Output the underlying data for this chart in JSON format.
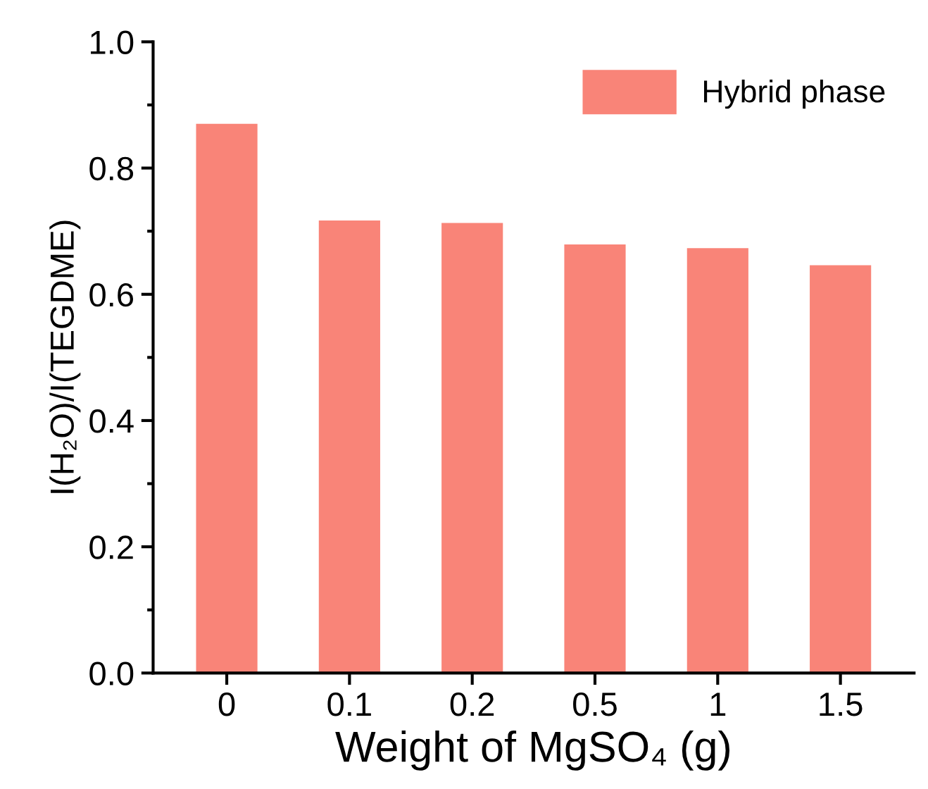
{
  "chart_data": {
    "type": "bar",
    "xlabel": "Weight of MgSO₄ (g)",
    "ylabel": "I(H₂O)/I(TEGDME)",
    "categories": [
      "0",
      "0.1",
      "0.2",
      "0.5",
      "1",
      "1.5"
    ],
    "series": [
      {
        "name": "Hybrid phase",
        "color": "#f98478",
        "values": [
          0.87,
          0.717,
          0.713,
          0.679,
          0.673,
          0.646
        ]
      }
    ],
    "ylim": [
      0,
      1.0
    ],
    "yticks": [
      {
        "value": 0,
        "label": "0.0"
      },
      0.2,
      0.4,
      0.6,
      0.8,
      {
        "value": 1.0,
        "label": "1.0"
      }
    ],
    "grid": false,
    "legend": "top right"
  }
}
